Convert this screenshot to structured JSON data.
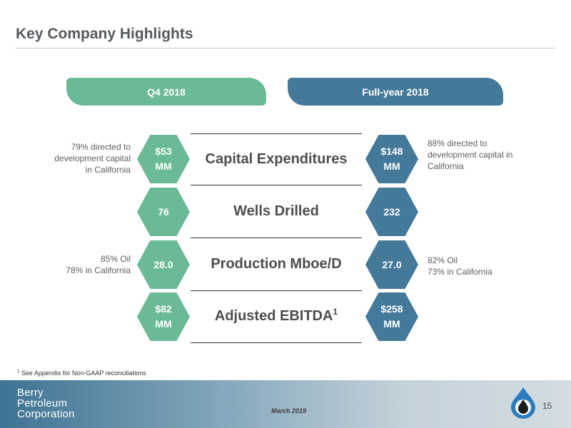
{
  "title": "Key Company Highlights",
  "tabs": {
    "q4": "Q4 2018",
    "fy": "Full-year 2018"
  },
  "rows": [
    {
      "metric": "Capital Expenditures",
      "sup": "",
      "q4": [
        "$53",
        "MM"
      ],
      "fy": [
        "$148",
        "MM"
      ]
    },
    {
      "metric": "Wells Drilled",
      "sup": "",
      "q4": [
        "76",
        ""
      ],
      "fy": [
        "232",
        ""
      ]
    },
    {
      "metric": "Production Mboe/D",
      "sup": "",
      "q4": [
        "28.0",
        ""
      ],
      "fy": [
        "27.0",
        ""
      ]
    },
    {
      "metric": "Adjusted EBITDA",
      "sup": "1",
      "q4": [
        "$82",
        "MM"
      ],
      "fy": [
        "$258",
        "MM"
      ]
    }
  ],
  "notes": {
    "capex_left": [
      "79% directed to",
      "development capital",
      "in California"
    ],
    "capex_right": [
      "88% directed to",
      "development capital in",
      "California"
    ],
    "prod_left": [
      "85% Oil",
      "78% in California"
    ],
    "prod_right": [
      "82% Oil",
      "73% in California"
    ]
  },
  "footnote": {
    "num": "1",
    "text": "See Appendix for Non-GAAP reconciliations"
  },
  "footer": {
    "logo_lines": [
      "Berry",
      "Petroleum",
      "Corporation"
    ],
    "date": "March 2019",
    "page": "15"
  },
  "colors": {
    "green": "#6aba95",
    "blue": "#44799a",
    "title": "#555a5e"
  },
  "icons": {
    "logo": "water-drop-icon"
  }
}
